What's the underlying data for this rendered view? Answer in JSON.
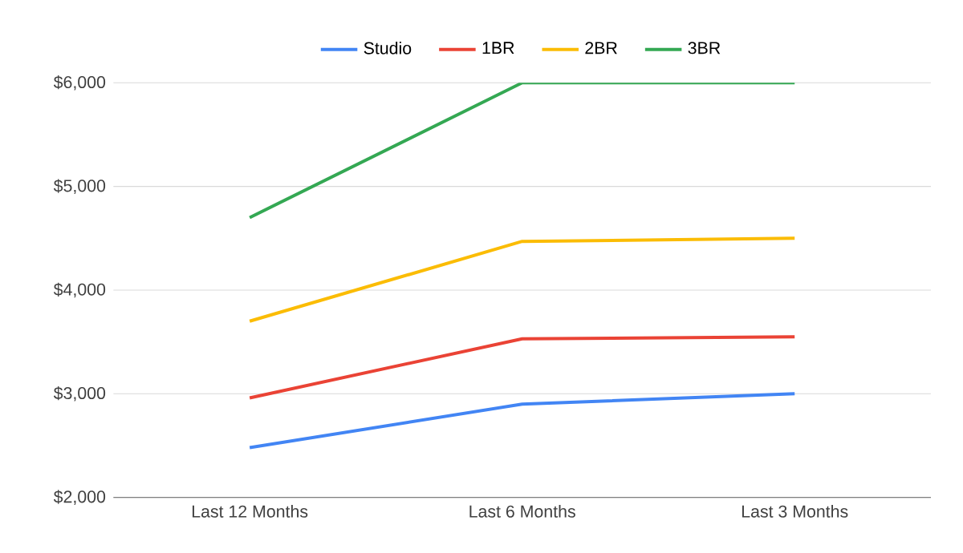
{
  "chart_data": {
    "type": "line",
    "categories": [
      "Last 12 Months",
      "Last 6 Months",
      "Last 3 Months"
    ],
    "series": [
      {
        "name": "Studio",
        "color": "#4285f4",
        "values": [
          2480,
          2900,
          3000
        ]
      },
      {
        "name": "1BR",
        "color": "#ea4335",
        "values": [
          2960,
          3530,
          3550
        ]
      },
      {
        "name": "2BR",
        "color": "#fbbc04",
        "values": [
          3700,
          4470,
          4500
        ]
      },
      {
        "name": "3BR",
        "color": "#34a853",
        "values": [
          4700,
          6000,
          6000
        ]
      }
    ],
    "ylim": [
      2000,
      6000
    ],
    "yticks": [
      {
        "value": 2000,
        "label": "$2,000"
      },
      {
        "value": 3000,
        "label": "$3,000"
      },
      {
        "value": 4000,
        "label": "$4,000"
      },
      {
        "value": 5000,
        "label": "$5,000"
      },
      {
        "value": 6000,
        "label": "$6,000"
      }
    ],
    "grid": "y",
    "legend": "top",
    "marker": "none",
    "line_style": "solid"
  }
}
